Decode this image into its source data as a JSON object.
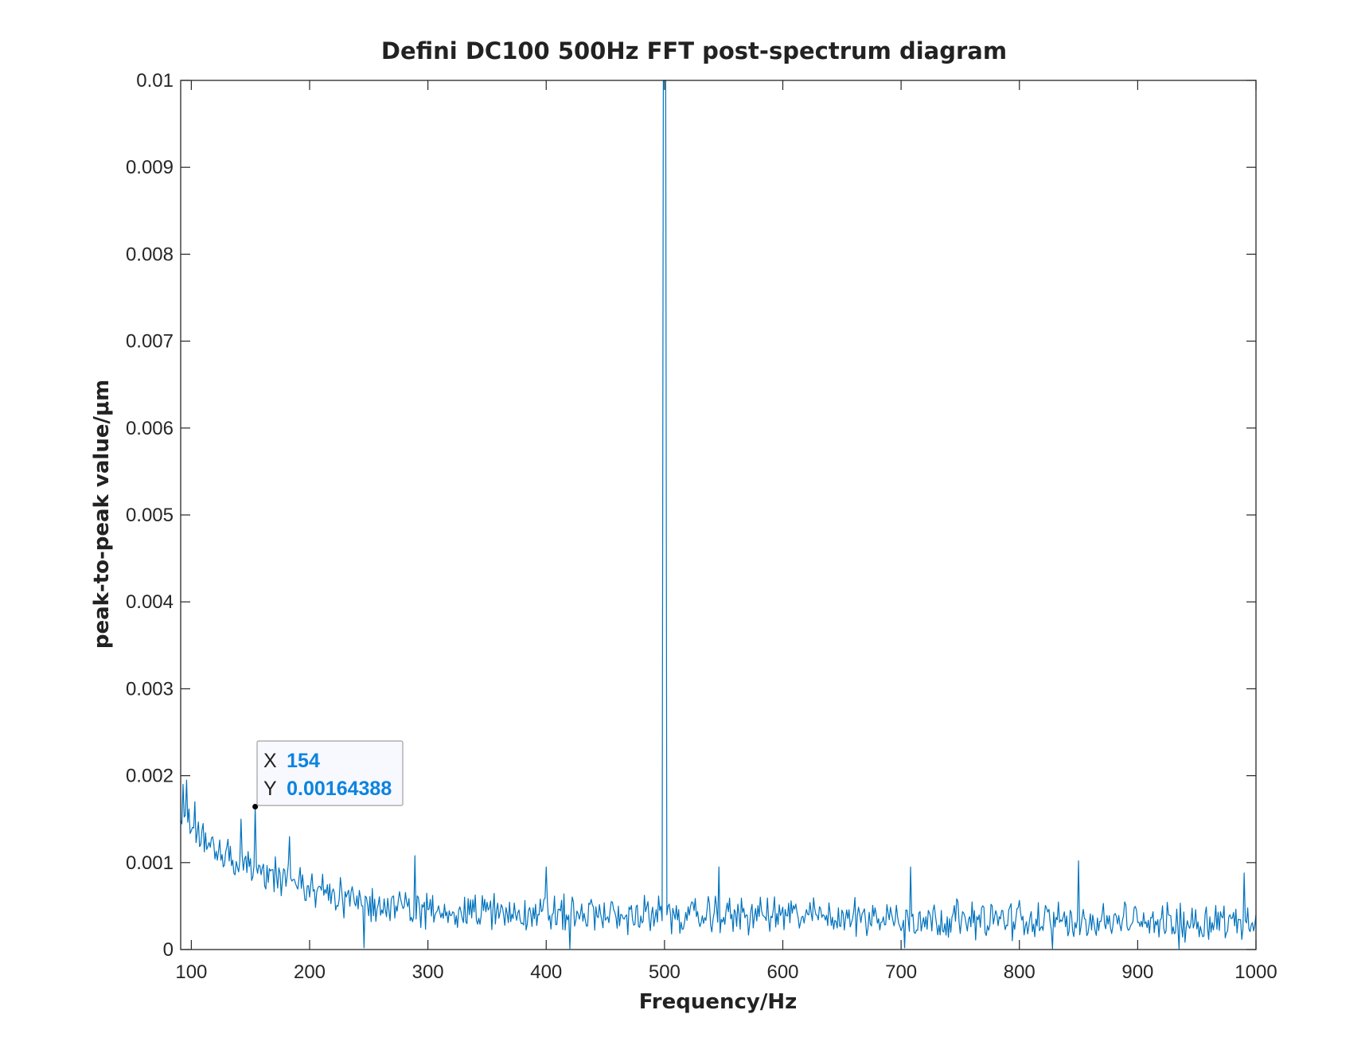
{
  "colors": {
    "series": "#0072BD",
    "axis": "#262626",
    "datatip_value": "#0A84E0",
    "datatip_bg": "#F8F8FF",
    "datatip_border": "#A0A0A0"
  },
  "chart_data": {
    "type": "line",
    "title": "Defini DC100 500Hz FFT post-spectrum diagram",
    "xlabel": "Frequency/Hz",
    "ylabel": "peak-to-peak value/μm",
    "xlim": [
      91,
      1000
    ],
    "ylim": [
      0,
      0.01
    ],
    "xticks": [
      100,
      200,
      300,
      400,
      500,
      600,
      700,
      800,
      900,
      1000
    ],
    "xtick_labels": [
      "100",
      "200",
      "300",
      "400",
      "500",
      "600",
      "700",
      "800",
      "900",
      "1000"
    ],
    "yticks": [
      0,
      0.001,
      0.002,
      0.003,
      0.004,
      0.005,
      0.006,
      0.007,
      0.008,
      0.009,
      0.01
    ],
    "ytick_labels": [
      "0",
      "0.001",
      "0.002",
      "0.003",
      "0.004",
      "0.005",
      "0.006",
      "0.007",
      "0.008",
      "0.009",
      "0.01"
    ],
    "grid": false,
    "series": [
      {
        "x_start": 91,
        "x_end": 1000,
        "x_step": 1,
        "base_points": [
          [
            91,
            0.00155
          ],
          [
            120,
            0.00115
          ],
          [
            150,
            0.00095
          ],
          [
            200,
            0.0007
          ],
          [
            250,
            0.00052
          ],
          [
            300,
            0.00045
          ],
          [
            400,
            0.00042
          ],
          [
            500,
            0.00038
          ],
          [
            600,
            0.0004
          ],
          [
            700,
            0.00036
          ],
          [
            800,
            0.00034
          ],
          [
            900,
            0.00032
          ],
          [
            1000,
            0.00033
          ]
        ],
        "noise_amplitude": 0.00016,
        "spikes": [
          [
            93,
            0.0019
          ],
          [
            96,
            0.00195
          ],
          [
            103,
            0.0017
          ],
          [
            110,
            0.00145
          ],
          [
            142,
            0.0015
          ],
          [
            154,
            0.00164388
          ],
          [
            183,
            0.0013
          ],
          [
            289,
            0.00108
          ],
          [
            400,
            0.00095
          ],
          [
            497,
            0.0005
          ],
          [
            499,
            0.01
          ],
          [
            500,
            0.01
          ],
          [
            501,
            0.01
          ],
          [
            503,
            0.0005
          ],
          [
            546,
            0.00095
          ],
          [
            708,
            0.00095
          ],
          [
            850,
            0.00102
          ],
          [
            990,
            0.00088
          ],
          [
            420,
            1e-05
          ],
          [
            246,
            2e-05
          ],
          [
            828,
            1e-05
          ],
          [
            935,
            1e-05
          ],
          [
            703,
            2e-05
          ]
        ]
      }
    ],
    "datatip": {
      "x_label": "X",
      "x_value": "154",
      "y_label": "Y",
      "y_value": "0.00164388",
      "point": [
        154,
        0.00164388
      ]
    }
  }
}
